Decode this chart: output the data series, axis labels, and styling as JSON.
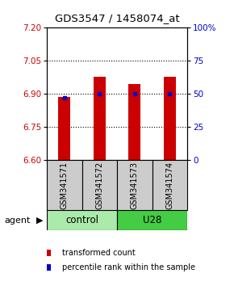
{
  "title": "GDS3547 / 1458074_at",
  "samples": [
    "GSM341571",
    "GSM341572",
    "GSM341573",
    "GSM341574"
  ],
  "red_values": [
    6.885,
    6.975,
    6.945,
    6.975
  ],
  "blue_values": [
    47,
    50,
    50,
    50
  ],
  "ylim_left": [
    6.6,
    7.2
  ],
  "ylim_right": [
    0,
    100
  ],
  "yticks_left": [
    6.6,
    6.75,
    6.9,
    7.05,
    7.2
  ],
  "yticks_right": [
    0,
    25,
    50,
    75,
    100
  ],
  "bar_color": "#cc0000",
  "dot_color": "#0000cc",
  "bar_bottom": 6.6,
  "bar_width": 0.35,
  "control_color": "#aaeaaa",
  "u28_color": "#44cc44",
  "sample_bg_color": "#cccccc",
  "legend_red_label": "transformed count",
  "legend_blue_label": "percentile rank within the sample",
  "agent_label": "agent",
  "group_label_control": "control",
  "group_label_u28": "U28"
}
